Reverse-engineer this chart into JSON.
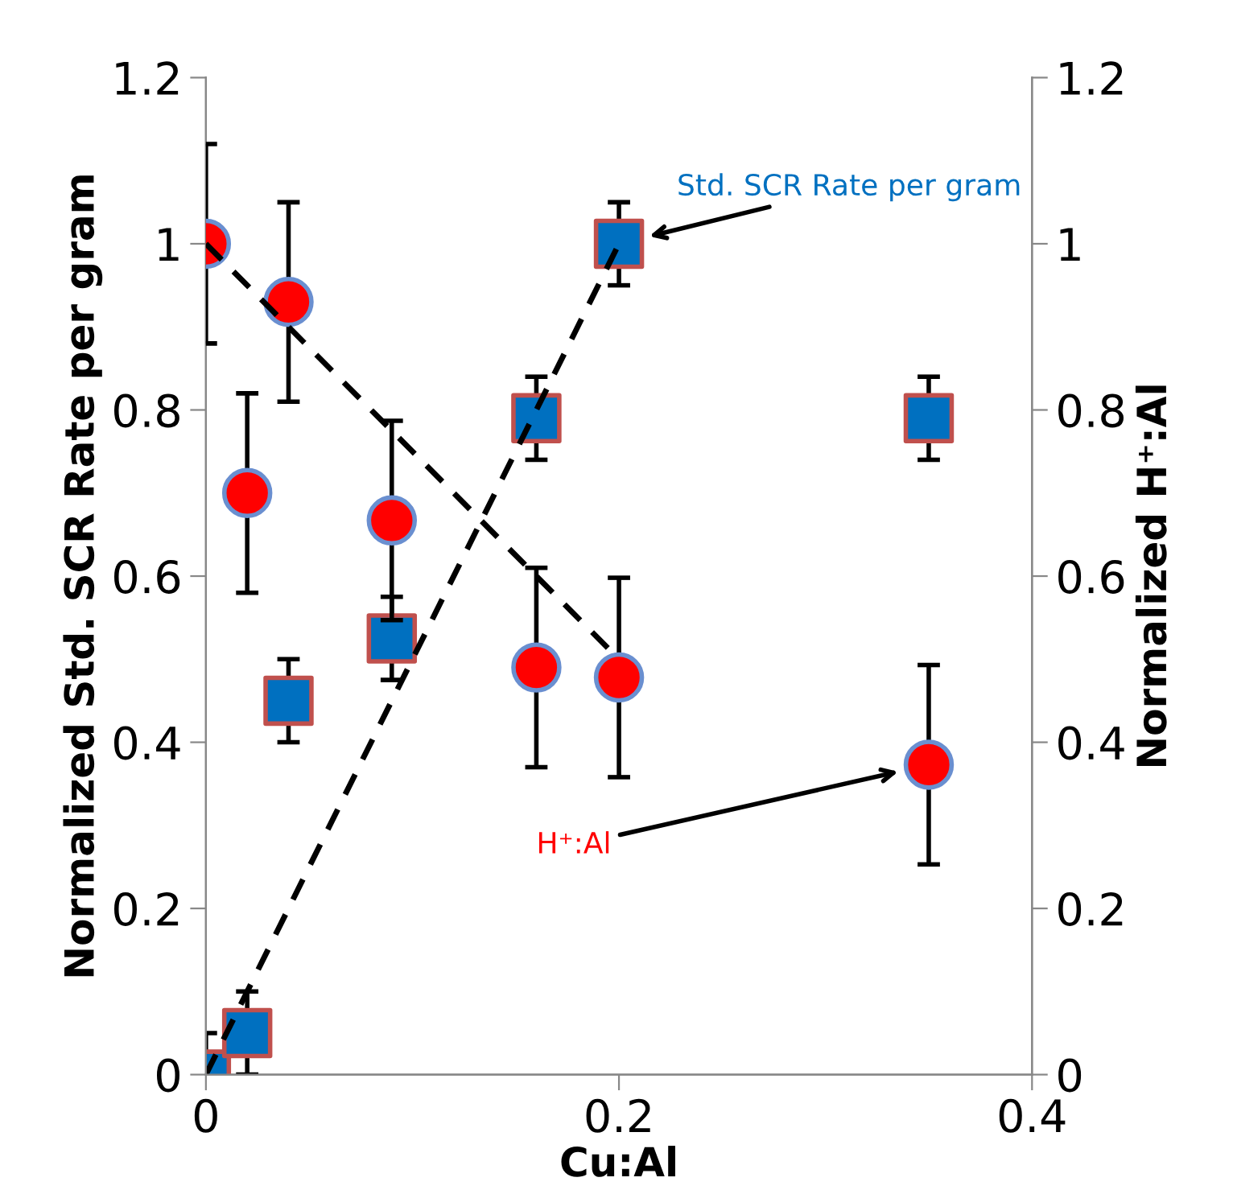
{
  "chart_data": {
    "type": "scatter",
    "xlabel": "Cu:Al",
    "ylabel": "Normalized Std. SCR Rate per gram",
    "y2label": "Normalized H⁺:Al",
    "xlim": [
      0,
      0.4
    ],
    "xticks": [
      0,
      0.2,
      0.4
    ],
    "ylim": [
      0,
      1.2
    ],
    "yticks": [
      0,
      0.2,
      0.4,
      0.6,
      0.8,
      1,
      1.2
    ],
    "y2lim": [
      0,
      1.2
    ],
    "y2ticks": [
      0,
      0.2,
      0.4,
      0.6,
      0.8,
      1,
      1.2
    ],
    "grid": false,
    "legend": false,
    "series": [
      {
        "name": "Std. SCR Rate per gram",
        "marker": "square",
        "color": "#0070c0",
        "x": [
          0,
          0.02,
          0.04,
          0.09,
          0.16,
          0.2,
          0.35
        ],
        "values": [
          0,
          0.05,
          0.45,
          0.525,
          0.79,
          1.0,
          0.79
        ],
        "errors": [
          0.05,
          0.05,
          0.05,
          0.05,
          0.05,
          0.05,
          0.05
        ]
      },
      {
        "name": "H⁺:Al",
        "marker": "circle",
        "axis": "y2",
        "color": "#ff0000",
        "x": [
          0,
          0.02,
          0.04,
          0.09,
          0.16,
          0.2,
          0.35
        ],
        "values": [
          1.0,
          0.7,
          0.93,
          0.667,
          0.49,
          0.478,
          0.373
        ],
        "errors": [
          0.12,
          0.12,
          0.12,
          0.12,
          0.12,
          0.12,
          0.12
        ]
      },
      {
        "type": "line",
        "marker": "none",
        "line_style": "dashed",
        "color": "#000000",
        "x": [
          0,
          0.2
        ],
        "values": [
          0,
          1.0
        ]
      },
      {
        "type": "line",
        "marker": "none",
        "line_style": "dashed",
        "axis": "y2",
        "color": "#000000",
        "x": [
          0,
          0.2
        ],
        "values": [
          1.0,
          0.5
        ]
      }
    ]
  }
}
